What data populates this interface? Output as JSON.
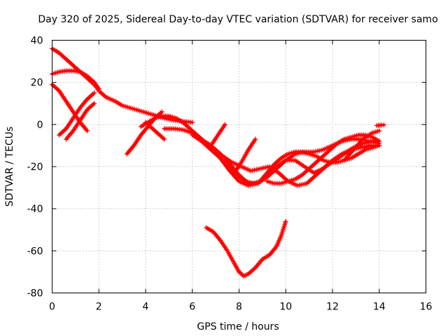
{
  "chart_data": {
    "type": "scatter",
    "title": "Day 320 of 2025, Sidereal Day-to-day VTEC variation (SDTVAR) for receiver samo",
    "xlabel": "GPS time / hours",
    "ylabel": "SDTVAR / TECUs",
    "xlim": [
      0,
      16
    ],
    "ylim": [
      -80,
      40
    ],
    "xticks": [
      0,
      2,
      4,
      6,
      8,
      10,
      12,
      14,
      16
    ],
    "yticks": [
      -80,
      -60,
      -40,
      -20,
      0,
      20,
      40
    ],
    "xtick_labels": [
      "0",
      "2",
      "4",
      "6",
      "8",
      "10",
      "12",
      "14",
      "16"
    ],
    "ytick_labels": [
      "-80",
      "-60",
      "-40",
      "-20",
      "0",
      "20",
      "40"
    ],
    "grid": true,
    "color": "#ff0000",
    "marker": "plus",
    "series": [
      {
        "name": "track-1",
        "x": [
          0.0,
          0.3,
          0.6,
          0.9,
          1.2,
          1.5,
          1.8,
          2.0,
          2.3,
          2.7,
          3.0,
          3.3,
          3.6,
          3.9,
          4.2,
          4.5,
          4.8,
          5.2,
          5.6,
          6.0
        ],
        "y": [
          36,
          34,
          31,
          28,
          25,
          22,
          19,
          16,
          13,
          11,
          9,
          8,
          7,
          6,
          5,
          4,
          3,
          2,
          1.5,
          1
        ]
      },
      {
        "name": "track-2",
        "x": [
          0.0,
          0.3,
          0.6,
          0.9,
          1.2,
          1.5,
          1.8,
          2.0
        ],
        "y": [
          24,
          25,
          25.5,
          25.5,
          25,
          23,
          20,
          17
        ]
      },
      {
        "name": "track-3",
        "x": [
          0.0,
          0.3,
          0.6,
          0.9,
          1.2,
          1.5
        ],
        "y": [
          19,
          16,
          11,
          6,
          1,
          -3
        ]
      },
      {
        "name": "track-4",
        "x": [
          0.3,
          0.6,
          0.9,
          1.2,
          1.5,
          1.8
        ],
        "y": [
          -5,
          -2,
          3,
          8,
          12,
          15
        ]
      },
      {
        "name": "track-5",
        "x": [
          0.6,
          0.9,
          1.2,
          1.5,
          1.8
        ],
        "y": [
          -7,
          -3,
          2,
          7,
          10
        ]
      },
      {
        "name": "track-6",
        "x": [
          3.2,
          3.5,
          3.8,
          4.1,
          4.4,
          4.7
        ],
        "y": [
          -14,
          -10,
          -5,
          -1,
          3,
          6
        ]
      },
      {
        "name": "track-7",
        "x": [
          3.8,
          4.1,
          4.4,
          4.7,
          5.0,
          5.3,
          5.6,
          5.9,
          6.2,
          6.5,
          6.8,
          7.1,
          7.4
        ],
        "y": [
          -1,
          1,
          3,
          4,
          4,
          3,
          1,
          -2,
          -5,
          -8,
          -10,
          -5,
          0
        ]
      },
      {
        "name": "track-8",
        "x": [
          4.0,
          4.3,
          4.6,
          4.8
        ],
        "y": [
          1,
          -2,
          -5,
          -7
        ]
      },
      {
        "name": "track-9",
        "x": [
          4.8,
          5.2,
          5.6,
          6.0,
          6.4,
          6.8,
          7.2,
          7.6,
          8.0,
          8.4,
          8.8,
          9.2,
          9.6,
          10.0,
          10.4,
          10.8,
          11.2,
          11.6,
          12.0,
          12.4,
          12.8,
          13.2,
          13.6,
          14.0
        ],
        "y": [
          -2,
          -2,
          -2.5,
          -4,
          -7,
          -11,
          -16,
          -22,
          -27,
          -29,
          -28,
          -25,
          -21,
          -17,
          -14,
          -13,
          -13,
          -12,
          -10,
          -8,
          -7,
          -7,
          -8,
          -9
        ]
      },
      {
        "name": "track-10",
        "x": [
          6.0,
          6.4,
          6.8,
          7.2,
          7.6,
          8.0,
          8.4,
          8.8,
          9.2,
          9.6,
          10.0,
          10.4,
          10.8,
          11.2,
          11.6,
          12.0,
          12.4,
          12.8,
          13.2,
          13.6,
          14.0
        ],
        "y": [
          -5,
          -8,
          -12,
          -16,
          -21,
          -25,
          -28,
          -28,
          -24,
          -20,
          -17,
          -17,
          -20,
          -23,
          -21,
          -17,
          -14,
          -12,
          -11,
          -10,
          -10
        ]
      },
      {
        "name": "track-11",
        "x": [
          6.5,
          6.9,
          7.3,
          7.7,
          8.1,
          8.5,
          8.9,
          9.3,
          9.7,
          10.1,
          10.5,
          10.9,
          11.3,
          11.7,
          12.1,
          12.5,
          12.9,
          13.3,
          13.7,
          14.0
        ],
        "y": [
          -8,
          -11,
          -15,
          -18,
          -20,
          -22,
          -21,
          -20,
          -23,
          -27,
          -29,
          -28,
          -24,
          -20,
          -17,
          -14,
          -11,
          -9,
          -8,
          -8
        ]
      },
      {
        "name": "track-12",
        "x": [
          7.4,
          7.7,
          8.0,
          8.3,
          8.6,
          8.9,
          9.2,
          9.5,
          9.8,
          10.1,
          10.4,
          10.7,
          11.0,
          11.3,
          11.6,
          11.9,
          12.2,
          12.5,
          12.8,
          13.1,
          13.4,
          13.7,
          14.0
        ],
        "y": [
          -16,
          -20,
          -24,
          -27,
          -28,
          -27,
          -23,
          -19,
          -16,
          -14,
          -13,
          -13,
          -14,
          -15,
          -17,
          -18,
          -18,
          -17,
          -16,
          -14,
          -12,
          -11,
          -10
        ]
      },
      {
        "name": "track-13",
        "x": [
          7.8,
          8.1,
          8.4,
          8.7
        ],
        "y": [
          -23,
          -18,
          -12,
          -7
        ]
      },
      {
        "name": "track-14",
        "x": [
          9.2,
          9.5,
          9.8,
          10.1,
          10.4,
          10.7,
          11.0,
          11.3,
          11.6,
          11.9,
          12.2,
          12.5,
          12.8,
          13.1,
          13.4,
          13.7,
          14.0
        ],
        "y": [
          -27,
          -28,
          -28,
          -27,
          -26,
          -24,
          -21,
          -18,
          -15,
          -12,
          -9,
          -7,
          -6,
          -5,
          -5,
          -6,
          -8
        ]
      },
      {
        "name": "track-15",
        "x": [
          12.5,
          12.9,
          13.3,
          13.7,
          14.0
        ],
        "y": [
          -17,
          -12,
          -7,
          -4,
          -3
        ]
      },
      {
        "name": "track-16",
        "x": [
          13.9,
          14.1,
          14.2
        ],
        "y": [
          -0.5,
          -0.3,
          -0.2
        ]
      },
      {
        "name": "track-17",
        "x": [
          6.6,
          6.9,
          7.2,
          7.5,
          7.8,
          8.0,
          8.2,
          8.4,
          8.7,
          9.0,
          9.3,
          9.6,
          9.8,
          10.0
        ],
        "y": [
          -49,
          -51,
          -55,
          -60,
          -66,
          -70,
          -72,
          -71,
          -68,
          -64,
          -62,
          -58,
          -53,
          -46
        ]
      }
    ]
  }
}
